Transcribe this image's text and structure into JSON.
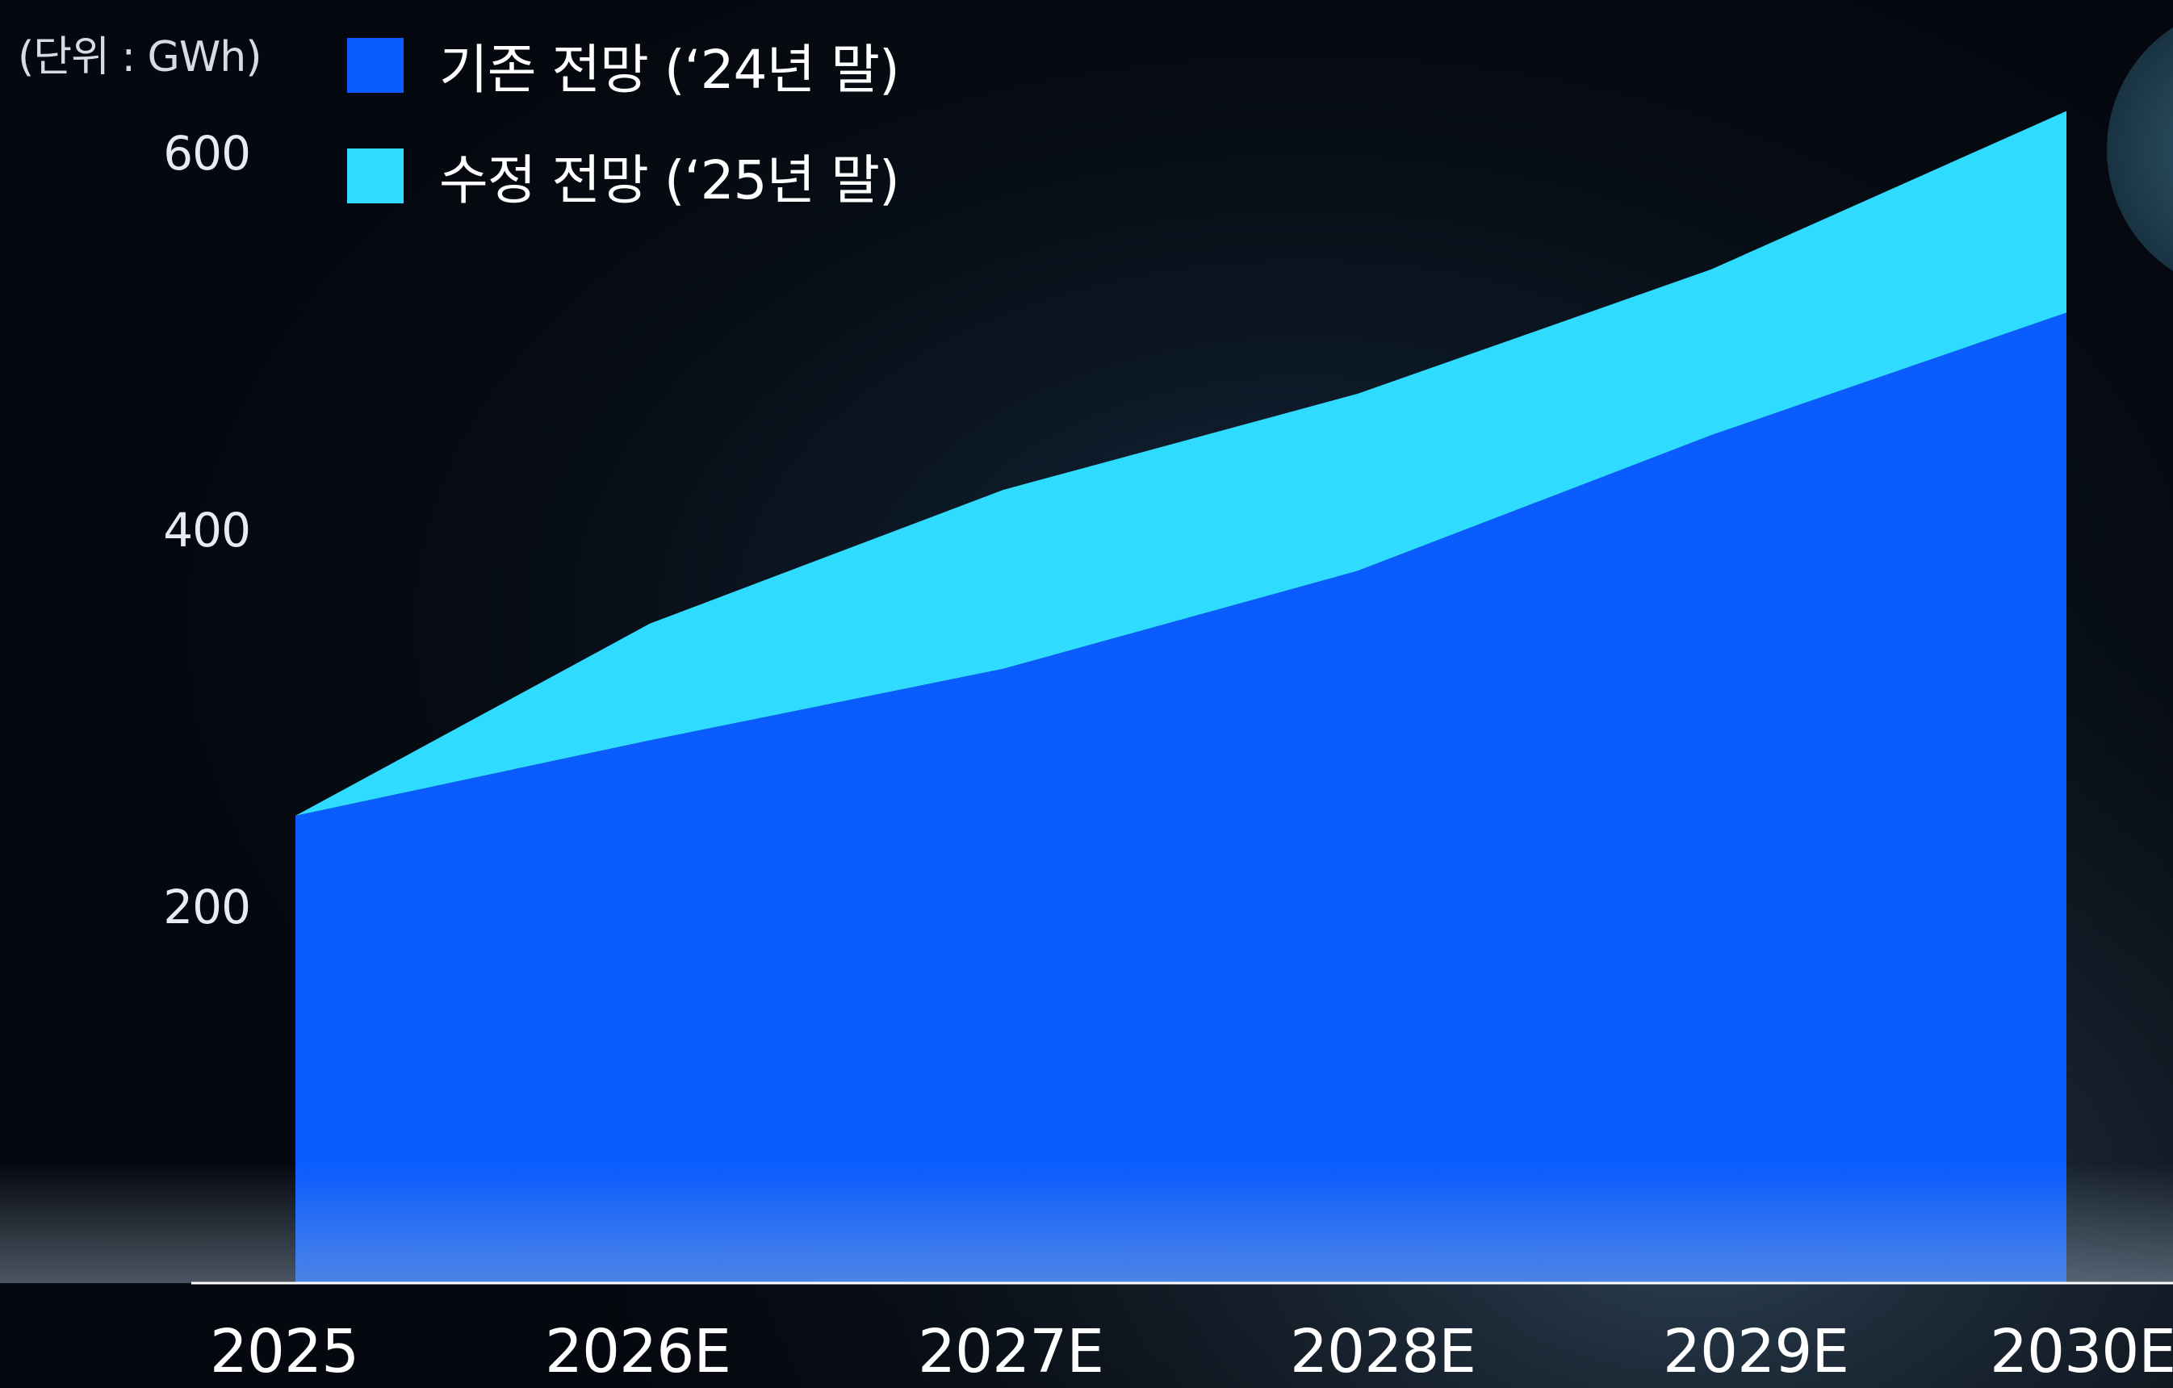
{
  "chart_data": {
    "type": "area",
    "unit_label": "(단위 : GWh)",
    "categories": [
      "2025",
      "2026E",
      "2027E",
      "2028E",
      "2029E",
      "2030E"
    ],
    "series": [
      {
        "name": "기존 전망 (‘24년 말)",
        "values": [
          248,
          288,
          326,
          378,
          450,
          515
        ],
        "color": "#0a5cff"
      },
      {
        "name": "수정 전망 (‘25년 말)",
        "values": [
          248,
          350,
          421,
          472,
          538,
          622
        ],
        "color": "#2fdcff"
      }
    ],
    "yticks": [
      "200",
      "400",
      "600"
    ],
    "ylim": [
      0,
      622
    ],
    "grid": false,
    "legend_position": "top-left"
  },
  "colors": {
    "background": "#05080e",
    "axis_line": "#ffffff"
  }
}
